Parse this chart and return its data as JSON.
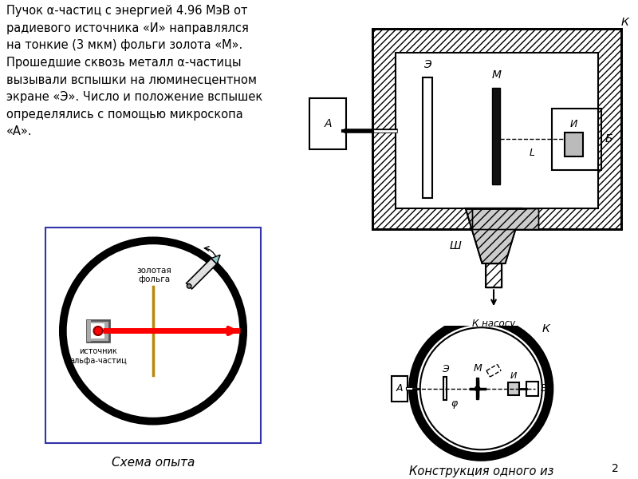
{
  "background_color": "#ffffff",
  "text_block": "Пучок α-частиц с энергией 4.96 МэВ от\nрадиевого источника «И» направлялся\nна тонкие (3 мкм) фольги золота «М».\nПрошедшие сквозь металл α-частицы\nвызывали вспышки на люминесцентном\nэкране «Э». Число и положение вспышек\nопределялись с помощью микроскопа\n«А».",
  "text_fontsize": 10.5,
  "schema_title": "Схема опыта",
  "schema_title_fontsize": 11,
  "construction_title": "Конструкция одного из\nвариантов прибора",
  "construction_title_fontsize": 10.5,
  "page_number": "2",
  "circle_color": "#000000",
  "circle_linewidth": 7,
  "foil_color": "#b8860b",
  "beam_color": "#ff0000",
  "source_dot_color": "#ff0000"
}
